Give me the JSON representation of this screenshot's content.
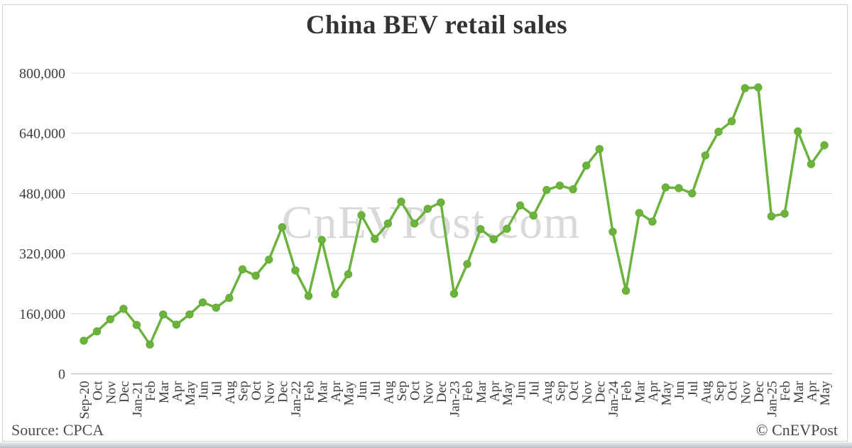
{
  "page": {
    "background": "#ffffff"
  },
  "watermark": {
    "text": "CnEVPost.com"
  },
  "footer": {
    "source": "Source: CPCA",
    "copyright": "© CnEVPost"
  },
  "chart_data": {
    "type": "line",
    "title": "China BEV retail sales",
    "xlabel": "",
    "ylabel": "",
    "ylim": [
      0,
      800000
    ],
    "ytick_step": 160000,
    "yticks": [
      0,
      160000,
      320000,
      480000,
      640000,
      800000
    ],
    "grid": "horizontal",
    "legend": "none",
    "colors": {
      "line": "#6CB33E",
      "marker": "#64AC37",
      "gridline": "#d9d9d9",
      "axis_line": "#bdbdbd",
      "tick_label": "#3d3d3d",
      "title_text": "#333333",
      "watermark": "#d9d9d9"
    },
    "categories": [
      "Sep-20",
      "Oct",
      "Nov",
      "Dec",
      "Jan-21",
      "Feb",
      "Mar",
      "Apr",
      "May",
      "Jun",
      "Jul",
      "Aug",
      "Sep",
      "Oct",
      "Nov",
      "Dec",
      "Jan-22",
      "Feb",
      "Mar",
      "Apr",
      "May",
      "Jun",
      "Jul",
      "Aug",
      "Sep",
      "Oct",
      "Nov",
      "Dec",
      "Jan-23",
      "Feb",
      "Mar",
      "Apr",
      "May",
      "Jun",
      "Jul",
      "Aug",
      "Sep",
      "Oct",
      "Nov",
      "Dec",
      "Jan-24",
      "Feb",
      "Mar",
      "Apr",
      "May",
      "Jun",
      "Jul",
      "Aug",
      "Sep",
      "Oct",
      "Nov",
      "Dec",
      "Jan-25",
      "Feb",
      "Mar",
      "Apr",
      "May"
    ],
    "series": [
      {
        "name": "China BEV retail sales",
        "values": [
          88000,
          113000,
          145000,
          173000,
          130000,
          78000,
          158000,
          131000,
          158000,
          190000,
          176000,
          202000,
          278000,
          261000,
          304000,
          390000,
          275000,
          207000,
          356000,
          212000,
          265000,
          422000,
          359000,
          400000,
          458000,
          400000,
          439000,
          456000,
          213000,
          292000,
          385000,
          358000,
          386000,
          448000,
          421000,
          489000,
          501000,
          491000,
          554000,
          598000,
          378000,
          221000,
          428000,
          405000,
          496000,
          494000,
          480000,
          581000,
          644000,
          672000,
          760000,
          762000,
          419000,
          426000,
          645000,
          558000,
          608000
        ]
      }
    ]
  }
}
